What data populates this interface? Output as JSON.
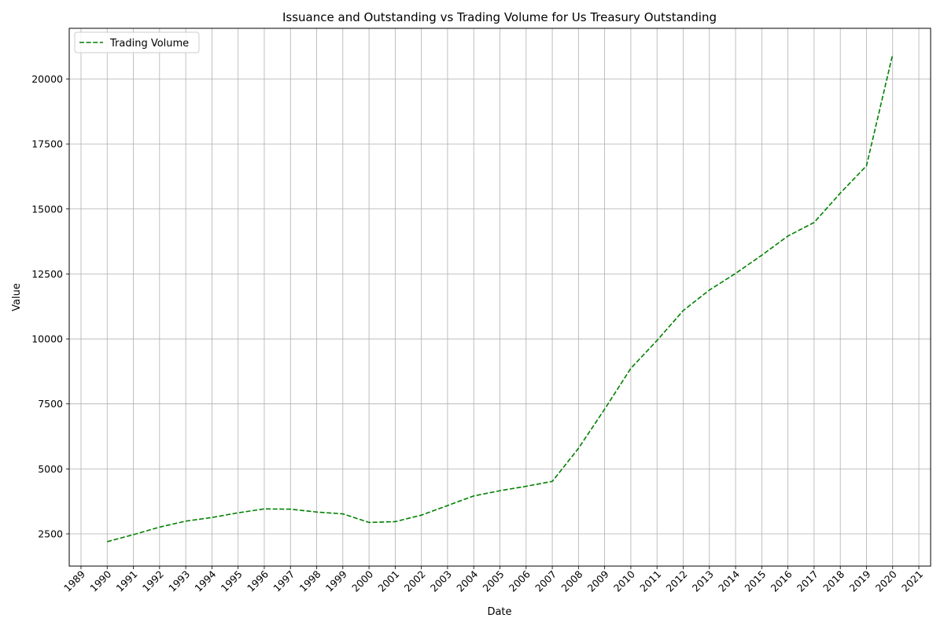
{
  "chart_data": {
    "type": "line",
    "title": "Issuance and Outstanding vs Trading Volume for Us Treasury Outstanding",
    "xlabel": "Date",
    "ylabel": "Value",
    "x_ticks": [
      "1989",
      "1990",
      "1991",
      "1992",
      "1993",
      "1994",
      "1995",
      "1996",
      "1997",
      "1998",
      "1999",
      "2000",
      "2001",
      "2002",
      "2003",
      "2004",
      "2005",
      "2006",
      "2007",
      "2008",
      "2009",
      "2010",
      "2011",
      "2012",
      "2013",
      "2014",
      "2015",
      "2016",
      "2017",
      "2018",
      "2019",
      "2020",
      "2021"
    ],
    "y_ticks": [
      2500,
      5000,
      7500,
      10000,
      12500,
      15000,
      17500,
      20000
    ],
    "xlim": [
      1988.55,
      2021.45
    ],
    "ylim": [
      1260,
      21950
    ],
    "grid": true,
    "legend_position": "top-left",
    "series": [
      {
        "name": "Trading Volume",
        "color": "#008000",
        "line_style": "dashed",
        "x": [
          1990,
          1991,
          1992,
          1993,
          1994,
          1995,
          1996,
          1997,
          1998,
          1999,
          2000,
          2001,
          2002,
          2003,
          2004,
          2005,
          2006,
          2007,
          2008,
          2009,
          2010,
          2011,
          2012,
          2013,
          2014,
          2015,
          2016,
          2017,
          2018,
          2019,
          2020
        ],
        "values": [
          2200,
          2470,
          2760,
          2990,
          3130,
          3310,
          3460,
          3450,
          3340,
          3270,
          2940,
          2970,
          3220,
          3590,
          3960,
          4160,
          4330,
          4520,
          5790,
          7300,
          8870,
          9940,
          11090,
          11880,
          12520,
          13220,
          13960,
          14480,
          15610,
          16660,
          20950
        ]
      }
    ]
  }
}
